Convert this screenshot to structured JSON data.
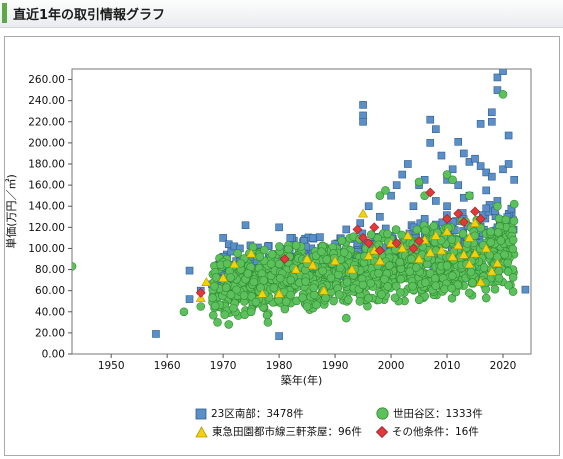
{
  "header": {
    "title": "直近1年の取引情報グラフ"
  },
  "colors": {
    "series_23ku": "#5b8fc7",
    "series_setagaya": "#5cc15c",
    "series_toden": "#f2d20c",
    "series_other": "#e0393b",
    "header_accent": "#5fa84a"
  },
  "chart_data": {
    "type": "scatter",
    "xlabel": "築年(年)",
    "ylabel": "単価(万円／㎡)",
    "xlim": [
      1943,
      2025
    ],
    "ylim": [
      0,
      270
    ],
    "x_ticks": [
      1950,
      1960,
      1970,
      1980,
      1990,
      2000,
      2010,
      2020
    ],
    "y_ticks": [
      "0.00",
      "20.00",
      "40.00",
      "60.00",
      "80.00",
      "100.00",
      "120.00",
      "140.00",
      "160.00",
      "180.00",
      "200.00",
      "220.00",
      "240.00",
      "260.00"
    ],
    "grid": false,
    "legend_position": "bottom",
    "series": [
      {
        "name": "23区南部：3478件",
        "marker": "square",
        "color": "#5b8fc7",
        "points": [
          [
            1958,
            19
          ],
          [
            1964,
            79
          ],
          [
            1964,
            52
          ],
          [
            1966,
            60
          ],
          [
            1968,
            66
          ],
          [
            1970,
            110
          ],
          [
            1971,
            104
          ],
          [
            1972,
            102
          ],
          [
            1973,
            100
          ],
          [
            1974,
            122
          ],
          [
            1976,
            88
          ],
          [
            1978,
            102
          ],
          [
            1979,
            72
          ],
          [
            1980,
            17
          ],
          [
            1980,
            120
          ],
          [
            1982,
            110
          ],
          [
            1984,
            94
          ],
          [
            1986,
            110
          ],
          [
            1988,
            82
          ],
          [
            1990,
            104
          ],
          [
            1992,
            80
          ],
          [
            1994,
            105
          ],
          [
            1995,
            236
          ],
          [
            1995,
            226
          ],
          [
            1995,
            220
          ],
          [
            1996,
            140
          ],
          [
            1998,
            130
          ],
          [
            2000,
            150
          ],
          [
            2001,
            160
          ],
          [
            2002,
            170
          ],
          [
            2003,
            180
          ],
          [
            2004,
            140
          ],
          [
            2005,
            160
          ],
          [
            2006,
            165
          ],
          [
            2007,
            200
          ],
          [
            2007,
            222
          ],
          [
            2008,
            213
          ],
          [
            2009,
            188
          ],
          [
            2010,
            165
          ],
          [
            2011,
            175
          ],
          [
            2012,
            201
          ],
          [
            2013,
            190
          ],
          [
            2014,
            182
          ],
          [
            2015,
            185
          ],
          [
            2016,
            218
          ],
          [
            2016,
            178
          ],
          [
            2017,
            172
          ],
          [
            2018,
            229
          ],
          [
            2018,
            220
          ],
          [
            2019,
            262
          ],
          [
            2019,
            250
          ],
          [
            2020,
            268
          ],
          [
            2020,
            175
          ],
          [
            2021,
            180
          ],
          [
            2021,
            207
          ],
          [
            2022,
            165
          ],
          [
            2024,
            61
          ],
          [
            2015,
            120
          ],
          [
            2016,
            100
          ],
          [
            2019,
            145
          ],
          [
            2012,
            160
          ],
          [
            2013,
            148
          ],
          [
            2018,
            168
          ],
          [
            2017,
            155
          ],
          [
            2019,
            120
          ],
          [
            2021,
            125
          ],
          [
            2020,
            100
          ],
          [
            2006,
            128
          ],
          [
            2004,
            120
          ],
          [
            2000,
            98
          ],
          [
            1997,
            111
          ],
          [
            1992,
            118
          ],
          [
            1986,
            95
          ],
          [
            1981,
            88
          ],
          [
            1976,
            97
          ],
          [
            1972,
            70
          ],
          [
            2008,
            145
          ],
          [
            2010,
            140
          ],
          [
            2014,
            150
          ],
          [
            2017,
            138
          ]
        ],
        "cloud": [
          [
            1969,
            2022
          ],
          [
            60,
            140
          ],
          300
        ]
      },
      {
        "name": "世田谷区：1333件",
        "marker": "circle",
        "color": "#5cc15c",
        "points": [
          [
            1943,
            83
          ],
          [
            1963,
            40
          ],
          [
            1966,
            45
          ],
          [
            1969,
            30
          ],
          [
            1971,
            28
          ],
          [
            1975,
            40
          ],
          [
            1978,
            30
          ],
          [
            1985,
            45
          ],
          [
            1992,
            34
          ],
          [
            1998,
            150
          ],
          [
            1999,
            155
          ],
          [
            2005,
            163
          ],
          [
            2006,
            150
          ],
          [
            2010,
            170
          ],
          [
            2011,
            165
          ],
          [
            2014,
            150
          ],
          [
            2017,
            53
          ],
          [
            2019,
            140
          ],
          [
            2020,
            246
          ],
          [
            2021,
            65
          ],
          [
            2022,
            142
          ]
        ],
        "cloud": [
          [
            1968,
            2022
          ],
          [
            30,
            130
          ],
          1100
        ]
      },
      {
        "name": "東急田園都市線三軒茶屋：96件",
        "marker": "triangle",
        "color": "#f2d20c",
        "points": [
          [
            1966,
            53
          ],
          [
            1967,
            68
          ],
          [
            1970,
            72
          ],
          [
            1972,
            85
          ],
          [
            1975,
            95
          ],
          [
            1977,
            57
          ],
          [
            1980,
            57
          ],
          [
            1983,
            80
          ],
          [
            1985,
            90
          ],
          [
            1986,
            84
          ],
          [
            1988,
            60
          ],
          [
            1990,
            88
          ],
          [
            1993,
            80
          ],
          [
            1995,
            133
          ],
          [
            1996,
            93
          ],
          [
            1997,
            98
          ],
          [
            1998,
            88
          ],
          [
            2000,
            105
          ],
          [
            2002,
            100
          ],
          [
            2003,
            112
          ],
          [
            2005,
            90
          ],
          [
            2006,
            108
          ],
          [
            2007,
            96
          ],
          [
            2008,
            112
          ],
          [
            2009,
            98
          ],
          [
            2010,
            116
          ],
          [
            2011,
            92
          ],
          [
            2012,
            103
          ],
          [
            2013,
            94
          ],
          [
            2014,
            110
          ],
          [
            2014,
            85
          ],
          [
            2015,
            124
          ],
          [
            2015,
            95
          ],
          [
            2016,
            68
          ],
          [
            2017,
            100
          ],
          [
            2018,
            78
          ],
          [
            2019,
            86
          ]
        ]
      },
      {
        "name": "その他条件：16件",
        "marker": "diamond",
        "color": "#e0393b",
        "points": [
          [
            1966,
            58
          ],
          [
            1981,
            90
          ],
          [
            1994,
            118
          ],
          [
            1995,
            110
          ],
          [
            1996,
            105
          ],
          [
            1997,
            120
          ],
          [
            1998,
            98
          ],
          [
            2001,
            105
          ],
          [
            2004,
            100
          ],
          [
            2005,
            107
          ],
          [
            2007,
            153
          ],
          [
            2010,
            128
          ],
          [
            2012,
            133
          ],
          [
            2013,
            125
          ],
          [
            2015,
            135
          ],
          [
            2016,
            128
          ]
        ]
      }
    ]
  },
  "legend": [
    {
      "label": "23区南部：3478件",
      "marker": "square",
      "color": "#5b8fc7"
    },
    {
      "label": "世田谷区：1333件",
      "marker": "circle",
      "color": "#5cc15c"
    },
    {
      "label": "東急田園都市線三軒茶屋：96件",
      "marker": "triangle",
      "color": "#f2d20c"
    },
    {
      "label": "その他条件：16件",
      "marker": "diamond",
      "color": "#e0393b"
    }
  ]
}
